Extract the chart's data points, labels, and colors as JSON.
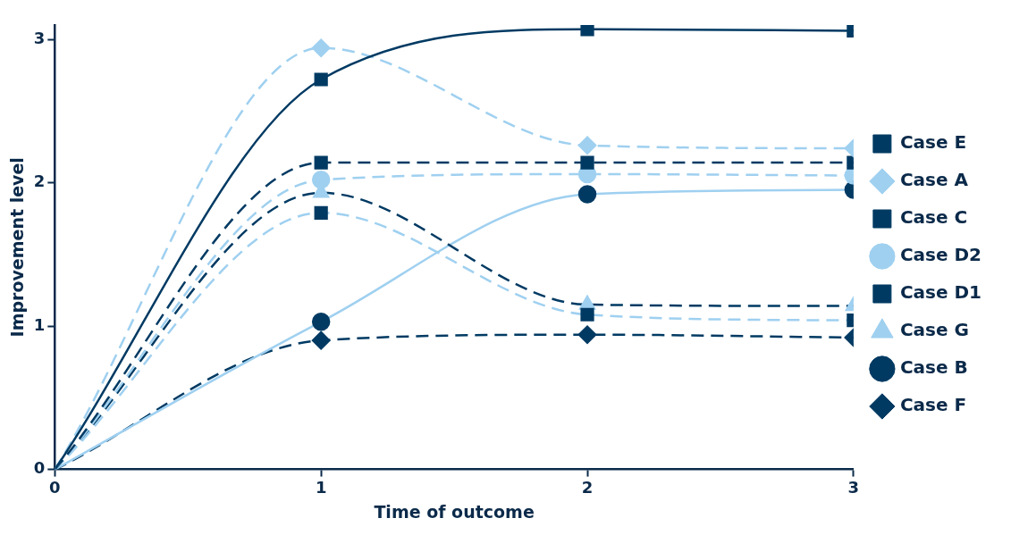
{
  "chart_data": {
    "type": "line",
    "xlabel": "Time of outcome",
    "ylabel": "Improvement level",
    "x": [
      0,
      1,
      2,
      3
    ],
    "xlim": [
      0,
      3
    ],
    "xticks": [
      0,
      1,
      2,
      3
    ],
    "ylim": [
      0,
      3.1
    ],
    "yticks": [
      0,
      1,
      2,
      3
    ],
    "grid": false,
    "legend": "right",
    "series": [
      {
        "name": "Case E",
        "color": "#003a63",
        "colors": [
          "#003a63",
          "#003a63",
          "#003a63",
          "#003a63"
        ],
        "marker": "square",
        "line_style": "solid",
        "values": [
          0,
          2.72,
          3.07,
          3.06
        ]
      },
      {
        "name": "Case A",
        "color": "#9fd0f0",
        "colors": [
          "#9fd0f0",
          "#9fd0f0",
          "#9fd0f0",
          "#9fd0f0"
        ],
        "marker": "diamond",
        "line_style": "dashed",
        "values": [
          0,
          2.94,
          2.26,
          2.24
        ]
      },
      {
        "name": "Case C",
        "color": "#003a63",
        "colors": [
          "#003a63",
          "#003a63",
          "#003a63",
          "#003a63"
        ],
        "marker": "square",
        "line_style": "dashed",
        "values": [
          0,
          2.14,
          2.14,
          2.14
        ]
      },
      {
        "name": "Case D2",
        "color": "#9fd0f0",
        "colors": [
          "#9fd0f0",
          "#9fd0f0",
          "#9fd0f0",
          "#9fd0f0"
        ],
        "marker": "circle",
        "line_style": "dashed",
        "values": [
          0,
          2.02,
          2.06,
          2.05
        ]
      },
      {
        "name": "Case D1",
        "color": "#9fd0f0",
        "colors": [
          "#003a63",
          "#003a63",
          "#003a63",
          "#003a63"
        ],
        "marker": "square",
        "line_style": "dashed",
        "values": [
          0,
          1.79,
          1.08,
          1.04
        ]
      },
      {
        "name": "Case G",
        "color": "#003a63",
        "colors": [
          "#9fd0f0",
          "#9fd0f0",
          "#9fd0f0",
          "#9fd0f0"
        ],
        "marker": "triangle",
        "line_style": "dashed",
        "values": [
          0,
          1.93,
          1.15,
          1.14
        ]
      },
      {
        "name": "Case B",
        "color": "#9fd0f0",
        "colors": [
          "#003a63",
          "#003a63",
          "#003a63",
          "#003a63"
        ],
        "marker": "circle",
        "line_style": "solid",
        "values": [
          0,
          1.03,
          1.92,
          1.95
        ]
      },
      {
        "name": "Case F",
        "color": "#003a63",
        "colors": [
          "#003a63",
          "#003a63",
          "#003a63",
          "#003a63"
        ],
        "marker": "diamond",
        "line_style": "dashed",
        "values": [
          0,
          0.9,
          0.94,
          0.92
        ]
      }
    ]
  }
}
